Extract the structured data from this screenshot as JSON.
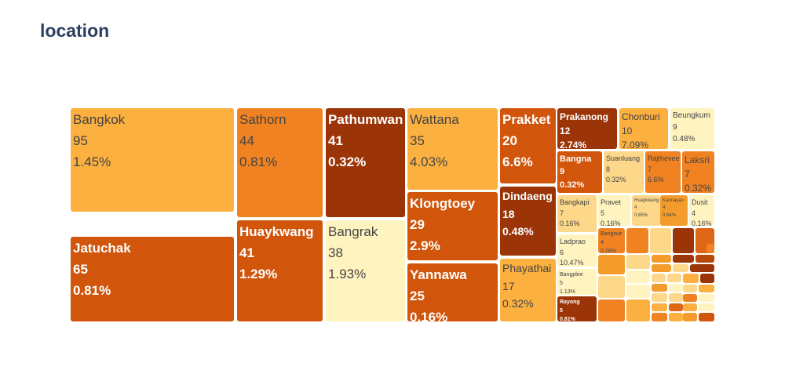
{
  "title": "location",
  "chart_data": {
    "type": "treemap",
    "title": "location",
    "colorscale": [
      "#fff3c0",
      "#fdd78a",
      "#fbb040",
      "#f39c2c",
      "#f08222",
      "#de6614",
      "#d1550b",
      "#b8470a",
      "#9b3507"
    ],
    "tiles": [
      {
        "label": "Bangkok",
        "value": 95,
        "percent": "1.45%",
        "color": "#fbb040"
      },
      {
        "label": "Jatuchak",
        "value": 65,
        "percent": "0.81%",
        "color": "#d1550b"
      },
      {
        "label": "Sathorn",
        "value": 44,
        "percent": "0.81%",
        "color": "#f08222"
      },
      {
        "label": "Huaykwang",
        "value": 41,
        "percent": "1.29%",
        "color": "#d1550b"
      },
      {
        "label": "Pathumwan",
        "value": 41,
        "percent": "0.32%",
        "color": "#9b3507"
      },
      {
        "label": "Bangrak",
        "value": 38,
        "percent": "1.93%",
        "color": "#fff3c0"
      },
      {
        "label": "Wattana",
        "value": 35,
        "percent": "4.03%",
        "color": "#fbb040"
      },
      {
        "label": "Klongtoey",
        "value": 29,
        "percent": "2.9%",
        "color": "#d1550b"
      },
      {
        "label": "Yannawa",
        "value": 25,
        "percent": "0.16%",
        "color": "#d1550b"
      },
      {
        "label": "Prakket",
        "value": 20,
        "percent": "6.6%",
        "color": "#d1550b"
      },
      {
        "label": "Dindaeng",
        "value": 18,
        "percent": "0.48%",
        "color": "#9b3507"
      },
      {
        "label": "Phayathai",
        "value": 17,
        "percent": "0.32%",
        "color": "#fbb040"
      },
      {
        "label": "Prakanong",
        "value": 12,
        "percent": "2.74%",
        "color": "#9b3507"
      },
      {
        "label": "Chonburi",
        "value": 10,
        "percent": "7.09%",
        "color": "#fbb040"
      },
      {
        "label": "Beungkum",
        "value": 9,
        "percent": "0.48%",
        "color": "#fff3c0"
      },
      {
        "label": "Bangna",
        "value": 9,
        "percent": "0.32%",
        "color": "#d1550b"
      },
      {
        "label": "Suanluang",
        "value": 8,
        "percent": "0.32%",
        "color": "#fdd78a"
      },
      {
        "label": "Rajthevee",
        "value": 7,
        "percent": "6.6%",
        "color": "#f08222"
      },
      {
        "label": "Laksri",
        "value": 7,
        "percent": "0.32%",
        "color": "#f08222"
      },
      {
        "label": "Bangkapi",
        "value": 7,
        "percent": "0.16%",
        "color": "#fdd78a"
      },
      {
        "label": "Pravet",
        "value": 5,
        "percent": "0.16%",
        "color": "#fff3c0"
      },
      {
        "label": "Huaykwang",
        "value": 4,
        "percent": "0.65%",
        "color": "#fdd78a"
      },
      {
        "label": "Kannayao",
        "value": 4,
        "percent": "0.64%",
        "color": "#f39c2c"
      },
      {
        "label": "Dusit",
        "value": 4,
        "percent": "0.16%",
        "color": "#fff3c0"
      },
      {
        "label": "Ladprao",
        "value": 6,
        "percent": "10.47%",
        "color": "#fff3c0"
      },
      {
        "label": "Bangsue",
        "value": 4,
        "percent": "0.16%",
        "color": "#f08222"
      },
      {
        "label": "Bangplee",
        "value": 5,
        "percent": "1.13%",
        "color": "#fff3c0"
      },
      {
        "label": "Rayong",
        "value": 5,
        "percent": "0.81%",
        "color": "#9b3507"
      }
    ],
    "small_tiles": [
      {
        "color": "#f08222"
      },
      {
        "color": "#fdd78a"
      },
      {
        "color": "#9b3507"
      },
      {
        "color": "#de6614"
      },
      {
        "color": "#fdd78a"
      },
      {
        "color": "#f39c2c"
      },
      {
        "color": "#9b3507"
      },
      {
        "color": "#b8470a"
      },
      {
        "color": "#f39c2c"
      },
      {
        "color": "#fdd78a"
      },
      {
        "color": "#9b3507"
      },
      {
        "color": "#f39c2c"
      },
      {
        "color": "#fff3c0"
      },
      {
        "color": "#fdd78a"
      },
      {
        "color": "#fdd78a"
      },
      {
        "color": "#fbb040"
      },
      {
        "color": "#9b3507"
      },
      {
        "color": "#fdd78a"
      },
      {
        "color": "#fff3c0"
      },
      {
        "color": "#f39c2c"
      },
      {
        "color": "#fff3c0"
      },
      {
        "color": "#fdd78a"
      },
      {
        "color": "#fbb040"
      },
      {
        "color": "#f08222"
      },
      {
        "color": "#fbb040"
      },
      {
        "color": "#fdd78a"
      },
      {
        "color": "#fdd78a"
      },
      {
        "color": "#f08222"
      },
      {
        "color": "#fff3c0"
      },
      {
        "color": "#fbb040"
      },
      {
        "color": "#de6614"
      },
      {
        "color": "#fbb040"
      },
      {
        "color": "#fff3c0"
      },
      {
        "color": "#f08222"
      },
      {
        "color": "#fbb040"
      },
      {
        "color": "#f39c2c"
      },
      {
        "color": "#d1550b"
      },
      {
        "color": "#f08222"
      }
    ]
  }
}
